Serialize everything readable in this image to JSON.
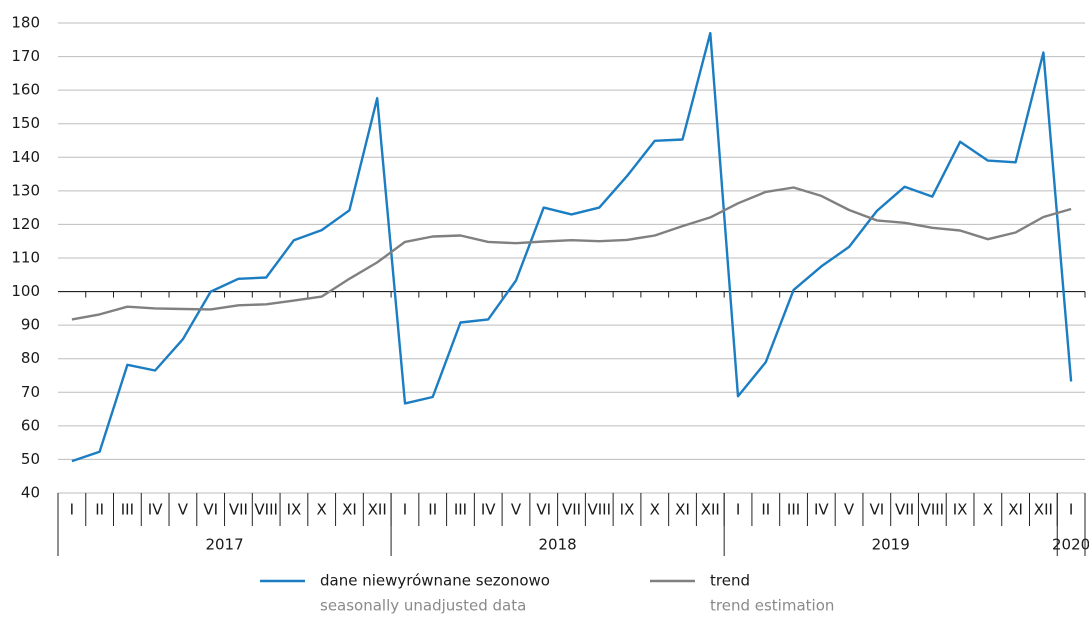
{
  "chart_data": {
    "type": "line",
    "categories": [
      "I",
      "II",
      "III",
      "IV",
      "V",
      "VI",
      "VII",
      "VIII",
      "IX",
      "X",
      "XI",
      "XII",
      "I",
      "II",
      "III",
      "IV",
      "V",
      "VI",
      "VII",
      "VIII",
      "IX",
      "X",
      "XI",
      "XII",
      "I",
      "II",
      "III",
      "IV",
      "V",
      "VI",
      "VII",
      "VIII",
      "IX",
      "X",
      "XI",
      "XII",
      "I"
    ],
    "years": [
      {
        "label": "2017",
        "span": 12
      },
      {
        "label": "2018",
        "span": 12
      },
      {
        "label": "2019",
        "span": 12
      },
      {
        "label": "2020",
        "span": 1
      }
    ],
    "series": [
      {
        "name": "dane niewyrównane sezonowo",
        "name_en": "seasonally unadjusted data",
        "color": "#1b7dc2",
        "values": [
          49.5,
          52.3,
          78.2,
          76.5,
          85.8,
          100.0,
          103.8,
          104.2,
          115.3,
          118.3,
          124.2,
          157.6,
          66.7,
          68.6,
          90.8,
          91.7,
          103.3,
          125.0,
          123.0,
          125.0,
          134.4,
          144.9,
          145.3,
          177.0,
          68.8,
          79.0,
          100.5,
          107.5,
          113.3,
          124.0,
          131.2,
          128.3,
          144.6,
          139.0,
          138.5,
          171.2,
          73.2
        ]
      },
      {
        "name": "trend",
        "name_en": "trend estimation",
        "color": "#808080",
        "values": [
          91.7,
          93.2,
          95.5,
          95.0,
          94.8,
          94.7,
          95.9,
          96.2,
          97.3,
          98.5,
          103.8,
          108.7,
          114.8,
          116.4,
          116.7,
          114.8,
          114.4,
          114.9,
          115.3,
          115.0,
          115.4,
          116.7,
          119.5,
          122.1,
          126.3,
          129.7,
          131.0,
          128.5,
          124.3,
          121.2,
          120.5,
          119.0,
          118.2,
          115.6,
          117.6,
          122.2,
          124.6
        ]
      }
    ],
    "ylim": [
      40,
      180
    ],
    "yticks": [
      40,
      50,
      60,
      70,
      80,
      90,
      100,
      110,
      120,
      130,
      140,
      150,
      160,
      170,
      180
    ],
    "xaxis_at": 100,
    "grid": true
  }
}
